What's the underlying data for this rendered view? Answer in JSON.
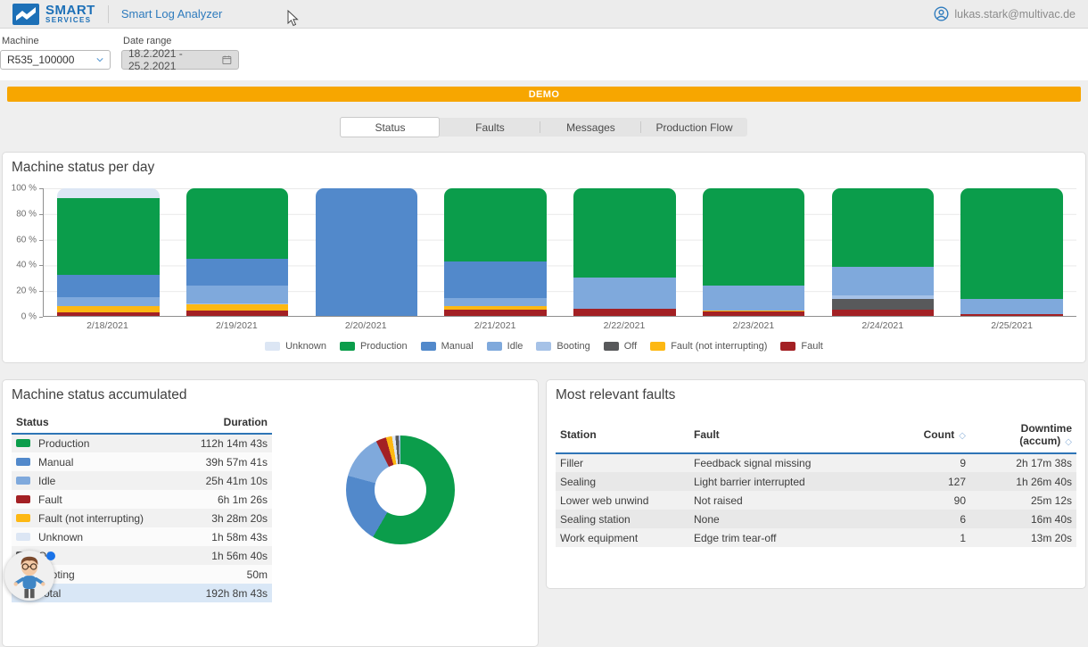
{
  "header": {
    "logo": {
      "line1": "SMART",
      "line2": "SERVICES"
    },
    "app_title": "Smart Log Analyzer",
    "user_email": "lukas.stark@multivac.de"
  },
  "filters": {
    "machine": {
      "label": "Machine",
      "value": "R535_100000"
    },
    "date_range": {
      "label": "Date range",
      "value": "18.2.2021 - 25.2.2021"
    }
  },
  "banner": {
    "label": "DEMO",
    "color": "#f7a600"
  },
  "tabs": [
    {
      "label": "Status",
      "active": true
    },
    {
      "label": "Faults",
      "active": false
    },
    {
      "label": "Messages",
      "active": false
    },
    {
      "label": "Production Flow",
      "active": false
    }
  ],
  "chart_data": [
    {
      "type": "bar",
      "stacked": true,
      "title": "Machine status per day",
      "unit": "%",
      "ylim": [
        0,
        100
      ],
      "y_ticks": [
        "100 %",
        "80 %",
        "60 %",
        "40 %",
        "20 %",
        "0 %"
      ],
      "grid": true,
      "legend_position": "bottom",
      "categories": [
        "2/18/2021",
        "2/19/2021",
        "2/20/2021",
        "2/21/2021",
        "2/22/2021",
        "2/23/2021",
        "2/24/2021",
        "2/25/2021"
      ],
      "series": [
        {
          "name": "Unknown",
          "color": "#dce6f4",
          "values": [
            8,
            0,
            0,
            0,
            0,
            0,
            0,
            0
          ]
        },
        {
          "name": "Production",
          "color": "#0b9d4b",
          "values": [
            60,
            55.5,
            0,
            57,
            70,
            76.5,
            61.6,
            86.5
          ]
        },
        {
          "name": "Manual",
          "color": "#5289cb",
          "values": [
            17,
            21,
            100,
            29,
            0,
            0,
            0,
            0
          ]
        },
        {
          "name": "Idle",
          "color": "#7fa9dc",
          "values": [
            7,
            14,
            0,
            6,
            24.5,
            19,
            22.6,
            12
          ]
        },
        {
          "name": "Booting",
          "color": "#a6c2e7",
          "values": [
            0.5,
            0.5,
            0,
            0,
            0,
            0,
            2.5,
            0
          ]
        },
        {
          "name": "Off",
          "color": "#58595b",
          "values": [
            0,
            0,
            0,
            0,
            0,
            0,
            8.3,
            0
          ]
        },
        {
          "name": "Fault (not interrupting)",
          "color": "#fdb813",
          "values": [
            5,
            5,
            0,
            3,
            0,
            1.2,
            0,
            0
          ]
        },
        {
          "name": "Fault",
          "color": "#a32024",
          "values": [
            2.5,
            4,
            0,
            5,
            5.5,
            3.3,
            5,
            1.5
          ]
        }
      ]
    },
    {
      "type": "donut",
      "title": "Machine status accumulated",
      "slices": [
        {
          "label": "Production",
          "value_pct": 58.4,
          "color": "#0b9d4b"
        },
        {
          "label": "Manual",
          "value_pct": 20.8,
          "color": "#5289cb"
        },
        {
          "label": "Idle",
          "value_pct": 13.4,
          "color": "#7fa9dc"
        },
        {
          "label": "Fault",
          "value_pct": 3.1,
          "color": "#a32024"
        },
        {
          "label": "Fault (not interrupting)",
          "value_pct": 1.8,
          "color": "#fdb813"
        },
        {
          "label": "Unknown",
          "value_pct": 1.0,
          "color": "#dce6f4"
        },
        {
          "label": "Off",
          "value_pct": 1.0,
          "color": "#58595b"
        },
        {
          "label": "Booting",
          "value_pct": 0.5,
          "color": "#a6c2e7"
        }
      ]
    }
  ],
  "status_table": {
    "title": "Machine status accumulated",
    "headers": [
      "Status",
      "Duration"
    ],
    "rows": [
      {
        "status": "Production",
        "duration": "112h 14m 43s",
        "color": "#0b9d4b"
      },
      {
        "status": "Manual",
        "duration": "39h 57m 41s",
        "color": "#5289cb"
      },
      {
        "status": "Idle",
        "duration": "25h 41m 10s",
        "color": "#7fa9dc"
      },
      {
        "status": "Fault",
        "duration": "6h 1m 26s",
        "color": "#a32024"
      },
      {
        "status": "Fault (not interrupting)",
        "duration": "3h 28m 20s",
        "color": "#fdb813"
      },
      {
        "status": "Unknown",
        "duration": "1h 58m 43s",
        "color": "#dce6f4"
      },
      {
        "status": "Off",
        "duration": "1h 56m 40s",
        "color": "#58595b"
      },
      {
        "status": "Booting",
        "duration": "50m",
        "color": "#a6c2e7"
      }
    ],
    "total_row": {
      "status": "Total",
      "duration": "192h 8m 43s"
    }
  },
  "faults_table": {
    "title": "Most relevant faults",
    "headers": [
      {
        "label": "Station",
        "sortable": false
      },
      {
        "label": "Fault",
        "sortable": false
      },
      {
        "label": "Count",
        "sortable": true
      },
      {
        "label": "Downtime (accum)",
        "sortable": true
      }
    ],
    "sort_icon": "◇",
    "rows": [
      [
        "Filler",
        "Feedback signal missing",
        "9",
        "2h 17m 38s"
      ],
      [
        "Sealing",
        "Light barrier interrupted",
        "127",
        "1h 26m 40s"
      ],
      [
        "Lower web unwind",
        "Not raised",
        "90",
        "25m 12s"
      ],
      [
        "Sealing station",
        "None",
        "6",
        "16m 40s"
      ],
      [
        "Work equipment",
        "Edge trim tear-off",
        "1",
        "13m 20s"
      ]
    ]
  },
  "assistant": {
    "dot_color": "#1a73e8"
  }
}
